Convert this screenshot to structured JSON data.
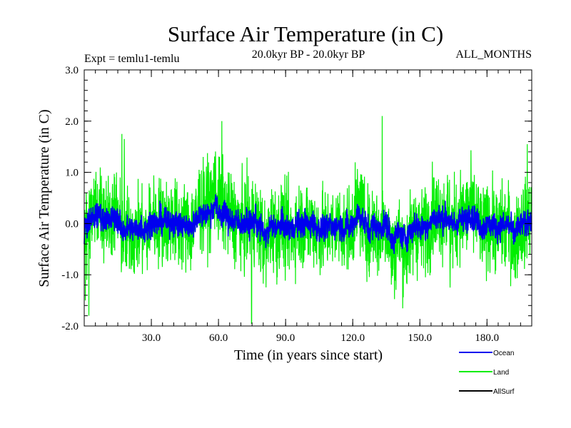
{
  "chart_data": {
    "type": "line",
    "title": "Surface Air Temperature (in C)",
    "subtitle_left": "Expt = temlu1-temlu",
    "subtitle_center": "20.0kyr BP - 20.0kyr BP",
    "subtitle_right": "ALL_MONTHS",
    "xlabel": "Time (in years since start)",
    "ylabel": "Surface Air Temperature (in C)",
    "xlim": [
      0,
      200
    ],
    "ylim": [
      -2.0,
      3.0
    ],
    "x_ticks": [
      {
        "value": 30,
        "label": "30.0"
      },
      {
        "value": 60,
        "label": "60.0"
      },
      {
        "value": 90,
        "label": "90.0"
      },
      {
        "value": 120,
        "label": "120.0"
      },
      {
        "value": 150,
        "label": "150.0"
      },
      {
        "value": 180,
        "label": "180.0"
      }
    ],
    "y_ticks": [
      {
        "value": 3.0,
        "label": "3.0"
      },
      {
        "value": 2.0,
        "label": "2.0"
      },
      {
        "value": 1.0,
        "label": "1.0"
      },
      {
        "value": 0.0,
        "label": "0.0"
      },
      {
        "value": -1.0,
        "label": "-1.0"
      },
      {
        "value": -2.0,
        "label": "-2.0"
      }
    ],
    "sampling": "monthly (12 samples per year)",
    "series": [
      {
        "name": "Land",
        "color": "#00ee00",
        "amplitude": 0.6,
        "peaks": [
          {
            "x": 0.5,
            "y": -1.5
          },
          {
            "x": 1.2,
            "y": -1.1
          },
          {
            "x": 2.1,
            "y": -1.8
          },
          {
            "x": 16.8,
            "y": 1.75
          },
          {
            "x": 17.9,
            "y": 1.65
          },
          {
            "x": 61.5,
            "y": 2.0
          },
          {
            "x": 74.8,
            "y": -1.95
          },
          {
            "x": 133.2,
            "y": 2.1
          },
          {
            "x": 163.5,
            "y": -1.25
          },
          {
            "x": 198.0,
            "y": 1.55
          }
        ]
      },
      {
        "name": "Ocean",
        "color": "#0000ee",
        "amplitude": 0.18
      },
      {
        "name": "AllSurf",
        "color": "#000000"
      }
    ]
  }
}
